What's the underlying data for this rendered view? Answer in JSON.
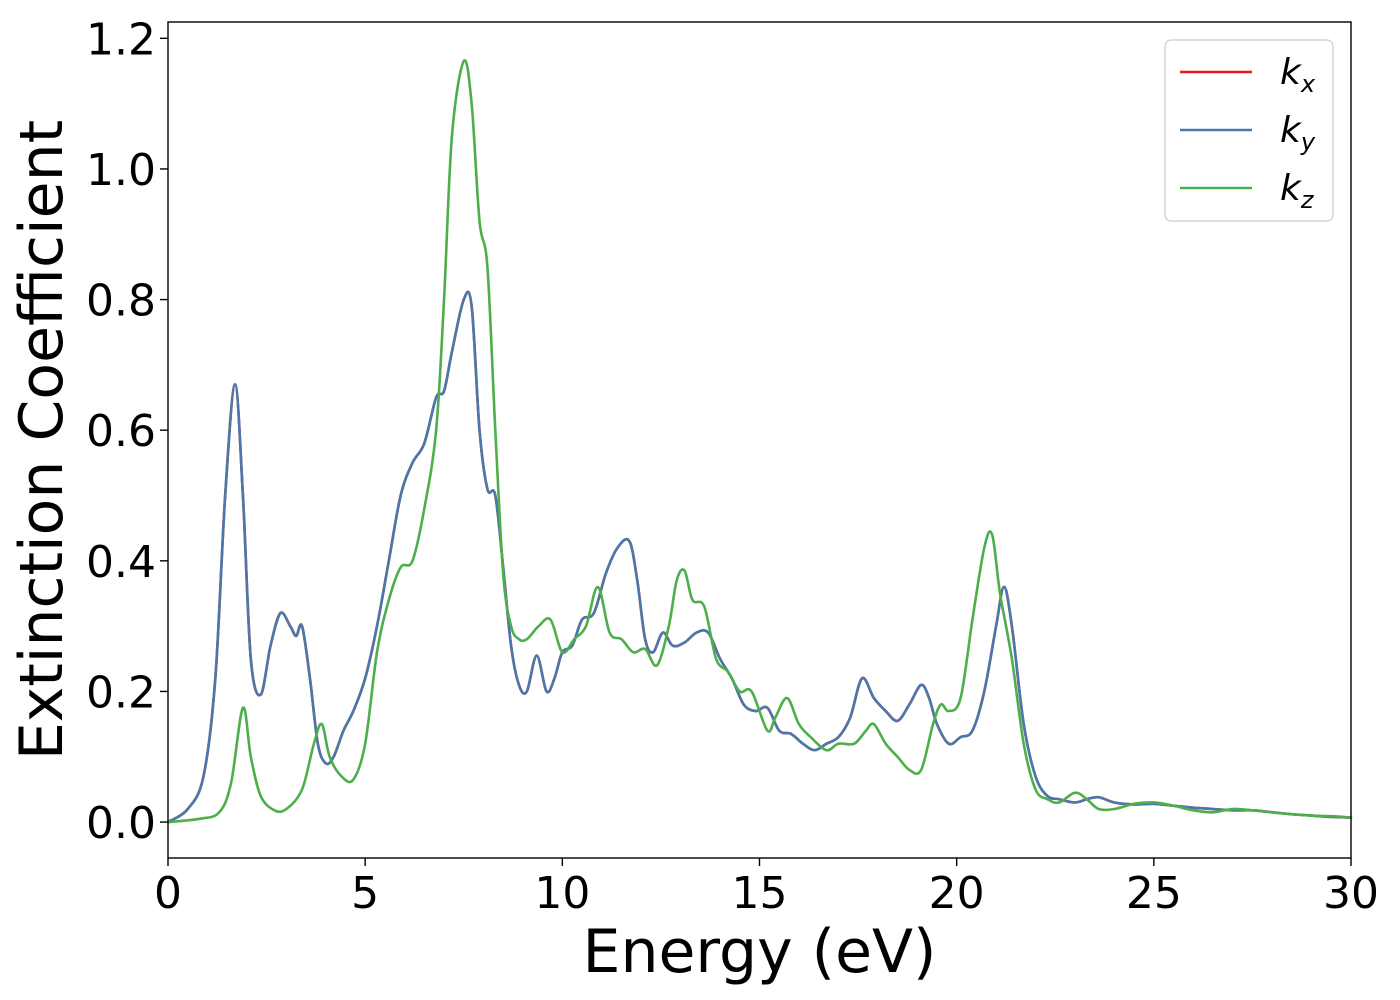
{
  "chart_data": {
    "type": "line",
    "title": "",
    "xlabel": "Energy (eV)",
    "ylabel": "Extinction Coefficient",
    "xlim": [
      0,
      30
    ],
    "ylim": [
      -0.055,
      1.225
    ],
    "xticks": [
      0,
      5,
      10,
      15,
      20,
      25,
      30
    ],
    "xtick_labels": [
      "0",
      "5",
      "10",
      "15",
      "20",
      "25",
      "30"
    ],
    "yticks": [
      0.0,
      0.2,
      0.4,
      0.6,
      0.8,
      1.0,
      1.2
    ],
    "ytick_labels": [
      "0.0",
      "0.2",
      "0.4",
      "0.6",
      "0.8",
      "1.0",
      "1.2"
    ],
    "grid": false,
    "legend_position": "top-right",
    "series": [
      {
        "name": "k_x",
        "legend_main": "k",
        "legend_sub": "x",
        "color": "#e41a1c",
        "x": [
          0,
          0.5,
          0.9,
          1.2,
          1.45,
          1.7,
          1.9,
          2.1,
          2.35,
          2.6,
          2.85,
          3.1,
          3.25,
          3.4,
          3.6,
          3.8,
          4.0,
          4.2,
          4.45,
          4.7,
          5.0,
          5.3,
          5.6,
          5.9,
          6.2,
          6.5,
          6.8,
          7.0,
          7.2,
          7.5,
          7.7,
          7.9,
          8.1,
          8.3,
          8.5,
          8.7,
          8.9,
          9.1,
          9.35,
          9.6,
          9.8,
          10.0,
          10.25,
          10.5,
          10.8,
          11.1,
          11.4,
          11.7,
          11.9,
          12.1,
          12.3,
          12.55,
          12.8,
          13.1,
          13.4,
          13.7,
          14.0,
          14.3,
          14.6,
          14.9,
          15.2,
          15.5,
          15.8,
          16.1,
          16.4,
          16.7,
          17.0,
          17.3,
          17.6,
          17.9,
          18.2,
          18.5,
          18.8,
          19.1,
          19.3,
          19.5,
          19.8,
          20.1,
          20.4,
          20.7,
          21.0,
          21.2,
          21.4,
          21.7,
          22.0,
          22.3,
          22.6,
          23.0,
          23.3,
          23.6,
          24.0,
          24.5,
          25.0,
          25.5,
          26.0,
          26.5,
          27.0,
          27.5,
          28.0,
          28.5,
          29.0,
          29.5,
          30.0
        ],
        "y": [
          0.0,
          0.02,
          0.07,
          0.22,
          0.5,
          0.67,
          0.5,
          0.25,
          0.195,
          0.27,
          0.32,
          0.3,
          0.285,
          0.3,
          0.22,
          0.12,
          0.09,
          0.1,
          0.14,
          0.17,
          0.22,
          0.3,
          0.4,
          0.5,
          0.55,
          0.58,
          0.65,
          0.66,
          0.72,
          0.8,
          0.79,
          0.6,
          0.51,
          0.5,
          0.39,
          0.27,
          0.21,
          0.2,
          0.255,
          0.2,
          0.22,
          0.26,
          0.27,
          0.31,
          0.32,
          0.38,
          0.42,
          0.43,
          0.37,
          0.28,
          0.26,
          0.29,
          0.27,
          0.275,
          0.29,
          0.29,
          0.25,
          0.22,
          0.18,
          0.17,
          0.175,
          0.14,
          0.135,
          0.12,
          0.11,
          0.12,
          0.13,
          0.16,
          0.22,
          0.19,
          0.17,
          0.155,
          0.18,
          0.21,
          0.19,
          0.15,
          0.12,
          0.13,
          0.14,
          0.2,
          0.3,
          0.36,
          0.3,
          0.15,
          0.07,
          0.04,
          0.035,
          0.03,
          0.035,
          0.038,
          0.03,
          0.027,
          0.028,
          0.025,
          0.022,
          0.02,
          0.018,
          0.018,
          0.015,
          0.012,
          0.01,
          0.008,
          0.007
        ]
      },
      {
        "name": "k_y",
        "legend_main": "k",
        "legend_sub": "y",
        "color": "#4a78aa",
        "x": [
          0,
          0.5,
          0.9,
          1.2,
          1.45,
          1.7,
          1.9,
          2.1,
          2.35,
          2.6,
          2.85,
          3.1,
          3.25,
          3.4,
          3.6,
          3.8,
          4.0,
          4.2,
          4.45,
          4.7,
          5.0,
          5.3,
          5.6,
          5.9,
          6.2,
          6.5,
          6.8,
          7.0,
          7.2,
          7.5,
          7.7,
          7.9,
          8.1,
          8.3,
          8.5,
          8.7,
          8.9,
          9.1,
          9.35,
          9.6,
          9.8,
          10.0,
          10.25,
          10.5,
          10.8,
          11.1,
          11.4,
          11.7,
          11.9,
          12.1,
          12.3,
          12.55,
          12.8,
          13.1,
          13.4,
          13.7,
          14.0,
          14.3,
          14.6,
          14.9,
          15.2,
          15.5,
          15.8,
          16.1,
          16.4,
          16.7,
          17.0,
          17.3,
          17.6,
          17.9,
          18.2,
          18.5,
          18.8,
          19.1,
          19.3,
          19.5,
          19.8,
          20.1,
          20.4,
          20.7,
          21.0,
          21.2,
          21.4,
          21.7,
          22.0,
          22.3,
          22.6,
          23.0,
          23.3,
          23.6,
          24.0,
          24.5,
          25.0,
          25.5,
          26.0,
          26.5,
          27.0,
          27.5,
          28.0,
          28.5,
          29.0,
          29.5,
          30.0
        ],
        "y": [
          0.0,
          0.02,
          0.07,
          0.22,
          0.5,
          0.67,
          0.5,
          0.25,
          0.195,
          0.27,
          0.32,
          0.3,
          0.285,
          0.3,
          0.22,
          0.12,
          0.09,
          0.1,
          0.14,
          0.17,
          0.22,
          0.3,
          0.4,
          0.5,
          0.55,
          0.58,
          0.65,
          0.66,
          0.72,
          0.8,
          0.79,
          0.6,
          0.51,
          0.5,
          0.39,
          0.27,
          0.21,
          0.2,
          0.255,
          0.2,
          0.22,
          0.26,
          0.27,
          0.31,
          0.32,
          0.38,
          0.42,
          0.43,
          0.37,
          0.28,
          0.26,
          0.29,
          0.27,
          0.275,
          0.29,
          0.29,
          0.25,
          0.22,
          0.18,
          0.17,
          0.175,
          0.14,
          0.135,
          0.12,
          0.11,
          0.12,
          0.13,
          0.16,
          0.22,
          0.19,
          0.17,
          0.155,
          0.18,
          0.21,
          0.19,
          0.15,
          0.12,
          0.13,
          0.14,
          0.2,
          0.3,
          0.36,
          0.3,
          0.15,
          0.07,
          0.04,
          0.035,
          0.03,
          0.035,
          0.038,
          0.03,
          0.027,
          0.028,
          0.025,
          0.022,
          0.02,
          0.018,
          0.018,
          0.015,
          0.012,
          0.01,
          0.008,
          0.007
        ]
      },
      {
        "name": "k_z",
        "legend_main": "k",
        "legend_sub": "z",
        "color": "#4daf4a",
        "x": [
          0,
          0.8,
          1.3,
          1.6,
          1.9,
          2.1,
          2.35,
          2.7,
          3.0,
          3.4,
          3.7,
          3.9,
          4.1,
          4.4,
          4.7,
          5.0,
          5.3,
          5.6,
          5.9,
          6.2,
          6.5,
          6.8,
          7.0,
          7.2,
          7.5,
          7.7,
          7.9,
          8.1,
          8.3,
          8.5,
          8.7,
          8.9,
          9.1,
          9.4,
          9.7,
          10.0,
          10.3,
          10.6,
          10.9,
          11.2,
          11.5,
          11.8,
          12.1,
          12.4,
          12.7,
          12.9,
          13.1,
          13.3,
          13.6,
          13.9,
          14.2,
          14.5,
          14.8,
          15.2,
          15.4,
          15.7,
          16.0,
          16.3,
          16.7,
          17.0,
          17.4,
          17.7,
          17.9,
          18.2,
          18.5,
          18.8,
          19.1,
          19.4,
          19.6,
          19.8,
          20.1,
          20.4,
          20.7,
          20.9,
          21.1,
          21.4,
          21.7,
          22.0,
          22.3,
          22.6,
          23.0,
          23.3,
          23.6,
          24.0,
          24.5,
          25.0,
          25.5,
          26.0,
          26.5,
          27.0,
          27.5,
          28.0,
          28.5,
          29.0,
          29.5,
          30.0
        ],
        "y": [
          0.0,
          0.005,
          0.015,
          0.06,
          0.175,
          0.1,
          0.04,
          0.018,
          0.02,
          0.05,
          0.12,
          0.15,
          0.1,
          0.07,
          0.065,
          0.12,
          0.26,
          0.34,
          0.39,
          0.4,
          0.48,
          0.6,
          0.8,
          1.05,
          1.165,
          1.1,
          0.92,
          0.85,
          0.6,
          0.38,
          0.3,
          0.28,
          0.28,
          0.3,
          0.31,
          0.26,
          0.28,
          0.3,
          0.36,
          0.29,
          0.28,
          0.26,
          0.265,
          0.24,
          0.3,
          0.37,
          0.385,
          0.34,
          0.33,
          0.25,
          0.23,
          0.2,
          0.2,
          0.14,
          0.16,
          0.19,
          0.15,
          0.13,
          0.11,
          0.12,
          0.12,
          0.14,
          0.15,
          0.12,
          0.1,
          0.08,
          0.08,
          0.15,
          0.18,
          0.17,
          0.19,
          0.31,
          0.42,
          0.44,
          0.35,
          0.25,
          0.12,
          0.05,
          0.035,
          0.03,
          0.045,
          0.035,
          0.02,
          0.02,
          0.028,
          0.03,
          0.025,
          0.018,
          0.015,
          0.02,
          0.018,
          0.015,
          0.012,
          0.01,
          0.009,
          0.007
        ]
      }
    ]
  }
}
